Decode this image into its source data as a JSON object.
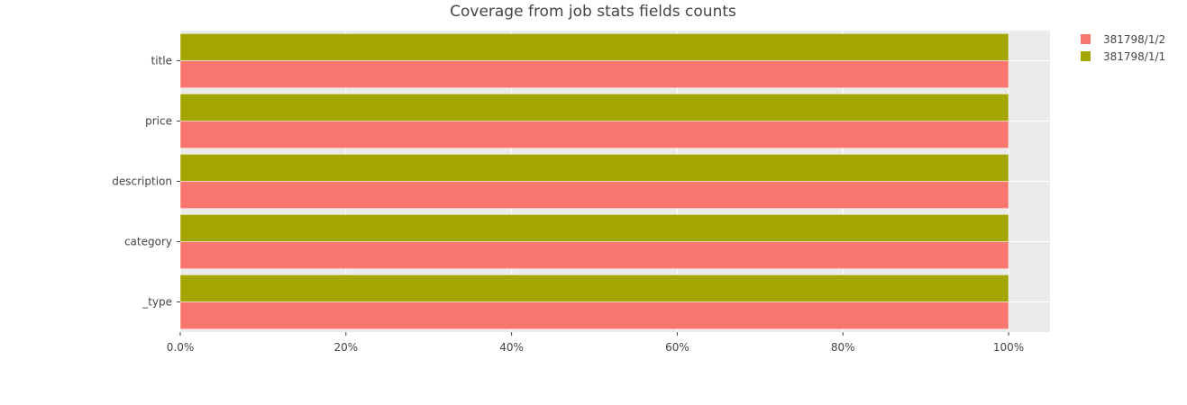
{
  "chart_data": {
    "type": "bar",
    "orientation": "horizontal",
    "title": "Coverage from job stats fields counts",
    "xlabel": "",
    "ylabel": "",
    "categories": [
      "title",
      "price",
      "description",
      "category",
      "_type"
    ],
    "series": [
      {
        "name": "381798/1/2",
        "color": "#F8766D",
        "values": [
          100,
          100,
          100,
          100,
          100
        ]
      },
      {
        "name": "381798/1/1",
        "color": "#A3A500",
        "values": [
          100,
          100,
          100,
          100,
          100
        ]
      }
    ],
    "xlim": [
      0,
      105
    ],
    "xticks": [
      0,
      20,
      40,
      60,
      80,
      100
    ],
    "xtick_labels": [
      "0.0%",
      "20%",
      "40%",
      "60%",
      "80%",
      "100%"
    ],
    "grid": true,
    "plot_background": "#EBEBEB",
    "legend_position": "top-right"
  }
}
